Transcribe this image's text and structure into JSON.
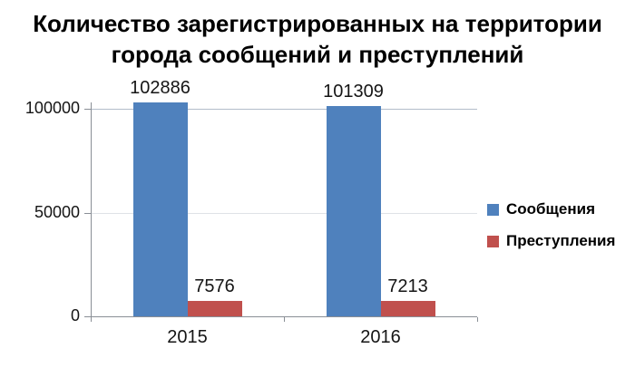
{
  "chart": {
    "title": "Количество зарегистрированных на территории города сообщений и преступлений"
  },
  "chart_data": {
    "type": "bar",
    "title": "Количество зарегистрированных на территории города сообщений и преступлений",
    "categories": [
      "2015",
      "2016"
    ],
    "series": [
      {
        "name": "Сообщения",
        "color": "#4F81BD",
        "values": [
          102886,
          101309
        ]
      },
      {
        "name": "Преступления",
        "color": "#C0504D",
        "values": [
          7576,
          7213
        ]
      }
    ],
    "value_labels": [
      [
        "102886",
        "101309"
      ],
      [
        "7576",
        "7213"
      ]
    ],
    "yticks": [
      "0",
      "50000",
      "100000"
    ],
    "ylim": [
      0,
      100000
    ],
    "xlabel": "",
    "ylabel": "",
    "grid": true,
    "legend_position": "right",
    "gridline_color_major": "#b3bdca",
    "gridline_color_minor": "#dfe2e7"
  }
}
